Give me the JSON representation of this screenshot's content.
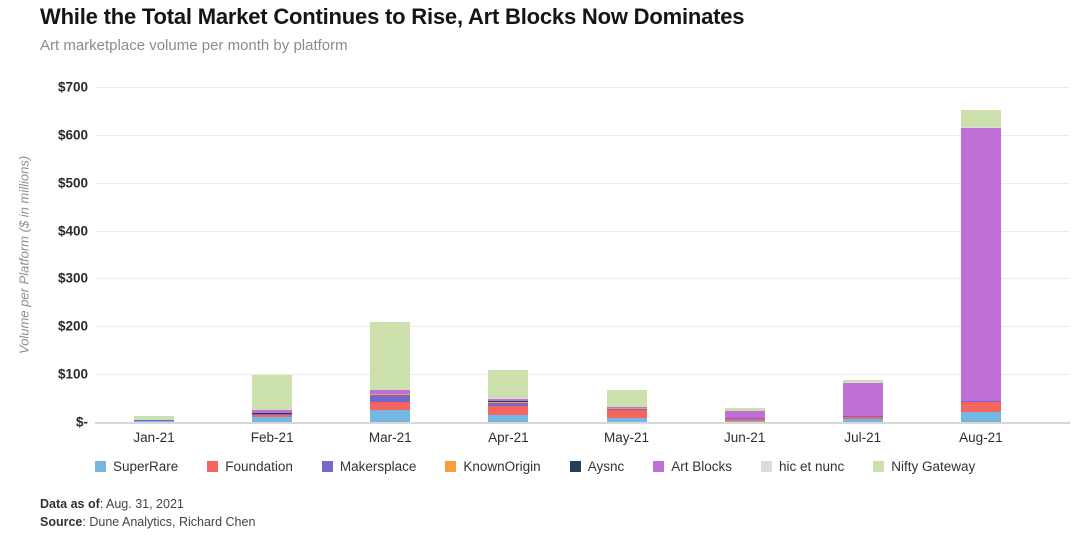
{
  "header": {
    "title": "While the Total Market Continues to Rise, Art Blocks Now Dominates",
    "subtitle": "Art marketplace volume per month by platform"
  },
  "chart_data": {
    "type": "bar",
    "stacked": true,
    "title": "While the Total Market Continues to Rise, Art Blocks Now Dominates",
    "subtitle": "Art marketplace volume per month by platform",
    "xlabel": "",
    "ylabel": "Volume per Platform ($ in millions)",
    "ylim": [
      0,
      700
    ],
    "ymax": 700,
    "grid": true,
    "legend_position": "bottom",
    "units": "USD millions",
    "categories": [
      "Jan-21",
      "Feb-21",
      "Mar-21",
      "Apr-21",
      "May-21",
      "Jun-21",
      "Jul-21",
      "Aug-21"
    ],
    "y_ticks": [
      {
        "label": "$700",
        "value": 700
      },
      {
        "label": "$600",
        "value": 600
      },
      {
        "label": "$500",
        "value": 500
      },
      {
        "label": "$400",
        "value": 400
      },
      {
        "label": "$300",
        "value": 300
      },
      {
        "label": "$200",
        "value": 200
      },
      {
        "label": "$100",
        "value": 100
      },
      {
        "label": "$-",
        "value": 0
      }
    ],
    "series": [
      {
        "name": "SuperRare",
        "color": "#74b7e0",
        "values": [
          2,
          10,
          25,
          14,
          8,
          3,
          6,
          21
        ]
      },
      {
        "name": "Foundation",
        "color": "#f4655f",
        "values": [
          1,
          4,
          17,
          20,
          17,
          4,
          5,
          20
        ]
      },
      {
        "name": "Makersplace",
        "color": "#7766cc",
        "values": [
          1,
          2,
          14,
          6,
          3,
          1,
          1,
          2
        ]
      },
      {
        "name": "KnownOrigin",
        "color": "#f6a03a",
        "values": [
          1,
          1,
          2,
          2,
          1,
          0,
          0,
          1
        ]
      },
      {
        "name": "Aysnc",
        "color": "#22405a",
        "values": [
          0,
          1,
          1,
          1,
          0,
          0,
          0,
          0
        ]
      },
      {
        "name": "Art Blocks",
        "color": "#c06ed8",
        "values": [
          0,
          8,
          8,
          6,
          2,
          15,
          70,
          570
        ]
      },
      {
        "name": "hic et nunc",
        "color": "#dcdcdc",
        "values": [
          0,
          0,
          1,
          1,
          1,
          1,
          2,
          2
        ]
      },
      {
        "name": "Nifty Gateway",
        "color": "#cbe0ad",
        "values": [
          7,
          72,
          142,
          58,
          36,
          6,
          4,
          36
        ]
      }
    ],
    "totals": [
      12,
      98,
      210,
      108,
      68,
      30,
      88,
      652
    ]
  },
  "footer": {
    "data_as_of_label": "Data as of",
    "data_as_of_value": ": Aug. 31, 2021",
    "source_label": "Source",
    "source_value": ": Dune Analytics, Richard Chen"
  }
}
